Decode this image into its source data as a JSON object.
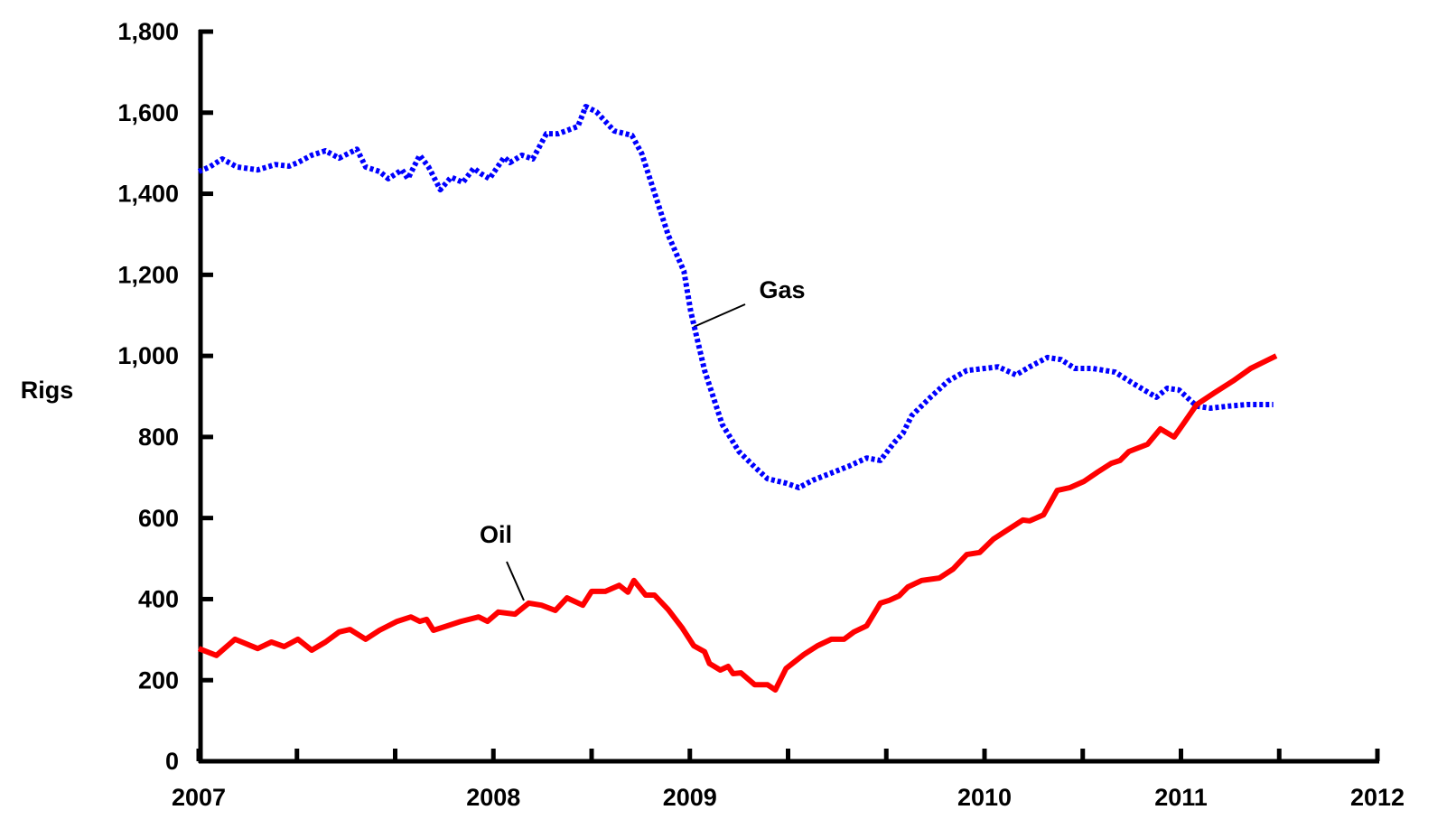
{
  "chart_data": {
    "type": "line",
    "ylabel": "Rigs",
    "xlim": [
      0,
      12
    ],
    "ylim": [
      0,
      1800
    ],
    "yticks": [
      0,
      200,
      400,
      600,
      800,
      {
        "value": 1000,
        "label": "1,000"
      },
      {
        "value": 1200,
        "label": "1,200"
      },
      {
        "value": 1400,
        "label": "1,400"
      },
      {
        "value": 1600,
        "label": "1,600"
      },
      {
        "value": 1800,
        "label": "1,800"
      }
    ],
    "xticks": [
      {
        "value": 0,
        "label": "2007"
      },
      {
        "value": 1,
        "label": null
      },
      {
        "value": 2,
        "label": null
      },
      {
        "value": 3,
        "label": "2008"
      },
      {
        "value": 4,
        "label": null
      },
      {
        "value": 5,
        "label": "2009"
      },
      {
        "value": 6,
        "label": null
      },
      {
        "value": 7,
        "label": null
      },
      {
        "value": 8,
        "label": "2010"
      },
      {
        "value": 9,
        "label": null
      },
      {
        "value": 10,
        "label": "2011"
      },
      {
        "value": 11,
        "label": null
      },
      {
        "value": 12,
        "label": "2012"
      }
    ],
    "series": [
      {
        "name": "Gas",
        "color": "#0000ff",
        "dashed": true,
        "x": [
          0,
          0.11,
          0.24,
          0.39,
          0.6,
          0.78,
          0.92,
          1.01,
          1.15,
          1.29,
          1.43,
          1.61,
          1.7,
          1.84,
          1.93,
          2.07,
          2.13,
          2.25,
          2.34,
          2.46,
          2.57,
          2.69,
          2.8,
          2.87,
          2.96,
          3.11,
          3.17,
          3.29,
          3.4,
          3.54,
          3.66,
          3.86,
          3.94,
          4.05,
          4.23,
          4.41,
          4.51,
          4.6,
          4.78,
          4.94,
          5.01,
          5.15,
          5.33,
          5.5,
          5.66,
          5.79,
          5.98,
          6.11,
          6.25,
          6.44,
          6.62,
          6.8,
          6.94,
          7.08,
          7.17,
          7.26,
          7.45,
          7.63,
          7.82,
          8.0,
          8.14,
          8.32,
          8.46,
          8.64,
          8.78,
          8.92,
          9.1,
          9.33,
          9.52,
          9.75,
          9.86,
          9.98,
          10.16,
          10.3,
          10.48,
          10.67,
          10.94
        ],
        "values": [
          1455,
          1466,
          1486,
          1466,
          1459,
          1472,
          1468,
          1477,
          1495,
          1506,
          1488,
          1510,
          1466,
          1455,
          1437,
          1459,
          1437,
          1495,
          1466,
          1410,
          1441,
          1428,
          1463,
          1450,
          1437,
          1490,
          1477,
          1495,
          1486,
          1548,
          1548,
          1566,
          1615,
          1602,
          1555,
          1544,
          1499,
          1432,
          1298,
          1209,
          1109,
          964,
          831,
          764,
          726,
          697,
          686,
          675,
          693,
          711,
          728,
          748,
          742,
          786,
          809,
          853,
          898,
          938,
          964,
          969,
          973,
          953,
          973,
          996,
          991,
          969,
          969,
          960,
          931,
          898,
          920,
          916,
          876,
          871,
          876,
          880,
          880
        ]
      },
      {
        "name": "Oil",
        "color": "#ff0000",
        "dashed": false,
        "x": [
          0,
          0.18,
          0.37,
          0.6,
          0.74,
          0.87,
          1.01,
          1.15,
          1.29,
          1.43,
          1.54,
          1.7,
          1.84,
          2.02,
          2.16,
          2.25,
          2.32,
          2.39,
          2.53,
          2.67,
          2.85,
          2.94,
          3.05,
          3.22,
          3.36,
          3.49,
          3.63,
          3.75,
          3.91,
          4.0,
          4.14,
          4.28,
          4.37,
          4.43,
          4.55,
          4.64,
          4.78,
          4.92,
          5.04,
          5.15,
          5.2,
          5.31,
          5.39,
          5.44,
          5.52,
          5.66,
          5.79,
          5.87,
          5.98,
          6.16,
          6.3,
          6.44,
          6.57,
          6.67,
          6.8,
          6.94,
          7.03,
          7.13,
          7.22,
          7.36,
          7.54,
          7.68,
          7.82,
          7.95,
          8.09,
          8.23,
          8.39,
          8.46,
          8.6,
          8.74,
          8.87,
          9.01,
          9.15,
          9.29,
          9.38,
          9.47,
          9.66,
          9.79,
          9.93,
          10.02,
          10.16,
          10.34,
          10.53,
          10.71,
          10.97
        ],
        "values": [
          278,
          261,
          301,
          278,
          294,
          283,
          301,
          274,
          294,
          319,
          325,
          301,
          323,
          345,
          356,
          345,
          350,
          323,
          334,
          345,
          356,
          345,
          368,
          363,
          390,
          385,
          372,
          403,
          385,
          419,
          419,
          434,
          417,
          446,
          410,
          410,
          374,
          330,
          285,
          270,
          241,
          225,
          234,
          216,
          218,
          189,
          189,
          176,
          229,
          263,
          285,
          301,
          301,
          319,
          334,
          390,
          397,
          408,
          430,
          446,
          452,
          474,
          510,
          515,
          548,
          570,
          595,
          593,
          608,
          668,
          675,
          690,
          713,
          735,
          742,
          764,
          782,
          820,
          800,
          831,
          880,
          909,
          938,
          969,
          1000
        ]
      }
    ]
  }
}
